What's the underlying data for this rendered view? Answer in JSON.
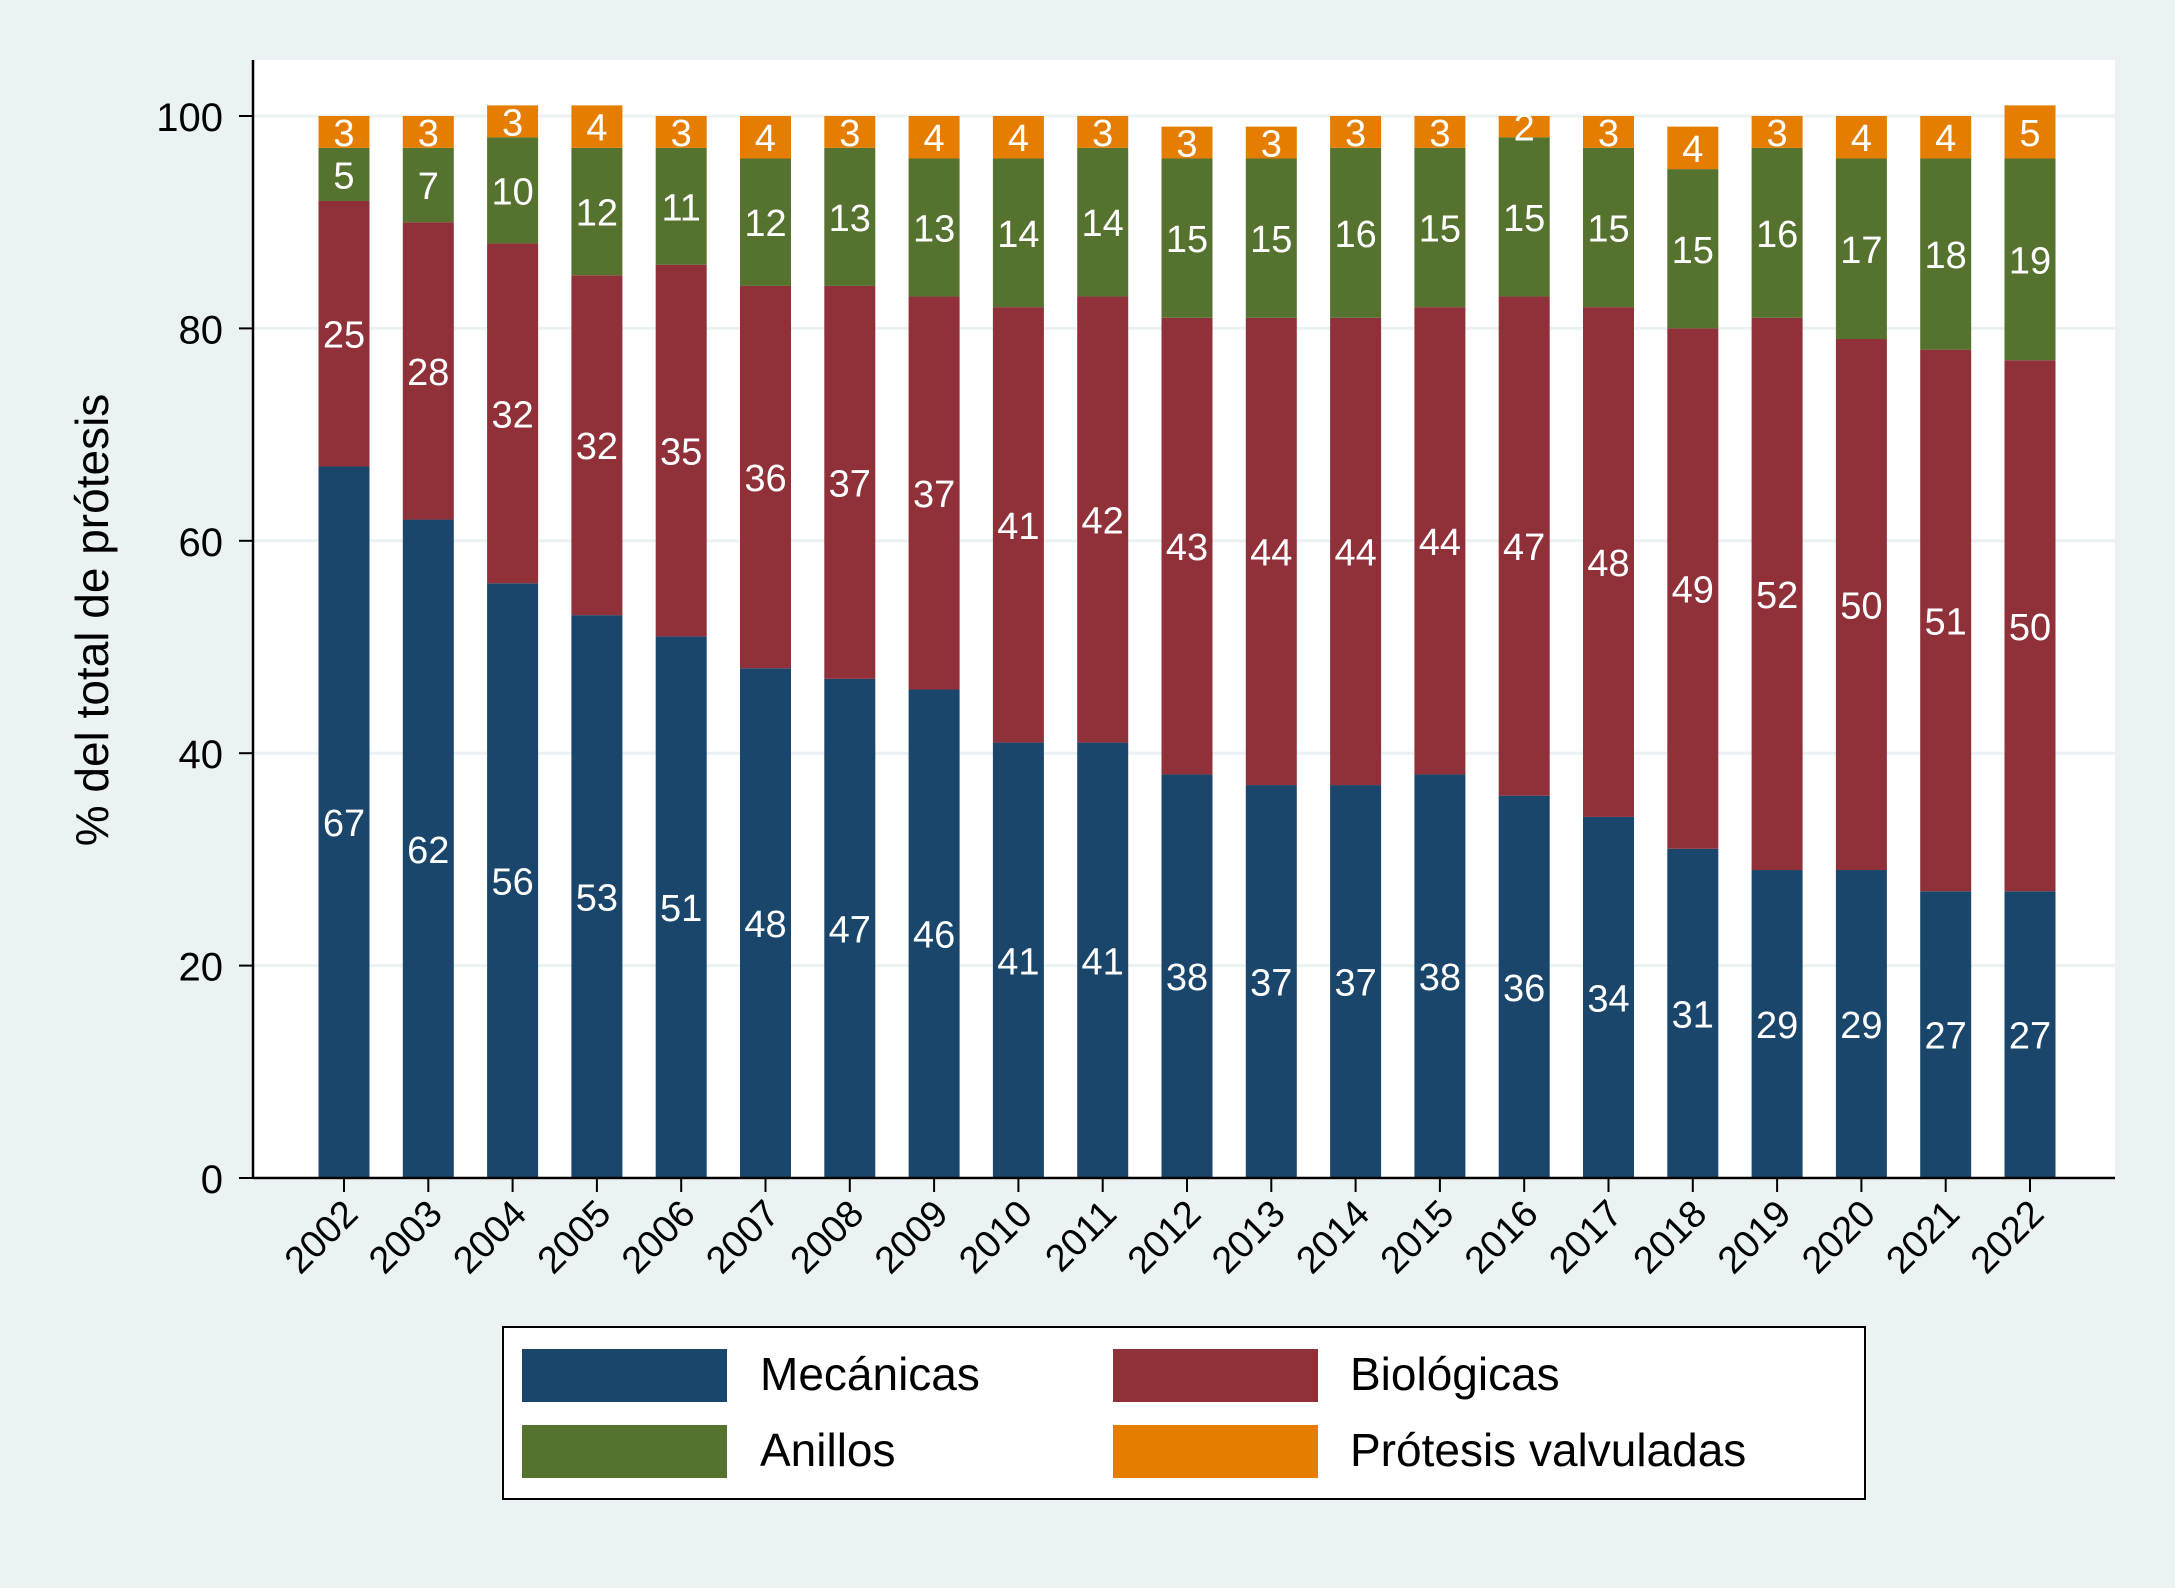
{
  "chart_data": {
    "type": "bar",
    "stacked": true,
    "title": "",
    "xlabel": "",
    "ylabel": "% del total de prótesis",
    "ylim": [
      0,
      100
    ],
    "yticks": [
      0,
      20,
      40,
      60,
      80,
      100
    ],
    "grid": true,
    "legend_position": "bottom",
    "categories": [
      "2002",
      "2003",
      "2004",
      "2005",
      "2006",
      "2007",
      "2008",
      "2009",
      "2010",
      "2011",
      "2012",
      "2013",
      "2014",
      "2015",
      "2016",
      "2017",
      "2018",
      "2019",
      "2020",
      "2021",
      "2022"
    ],
    "series": [
      {
        "name": "Mecánicas",
        "color": "#1a466b",
        "values": [
          67,
          62,
          56,
          53,
          51,
          48,
          47,
          46,
          41,
          41,
          38,
          37,
          37,
          38,
          36,
          34,
          31,
          29,
          29,
          27,
          27
        ],
        "labels": [
          "67",
          "62",
          "56",
          "53",
          "51",
          "48",
          "47",
          "46",
          "41",
          "41",
          "38",
          "37",
          "37",
          "38",
          "36",
          "34",
          "31",
          "29",
          "29",
          "27",
          "27"
        ]
      },
      {
        "name": "Biológicas",
        "color": "#903039",
        "values": [
          25,
          28,
          32,
          32,
          35,
          36,
          37,
          37,
          41,
          42,
          43,
          44,
          44,
          44,
          47,
          48,
          49,
          52,
          50,
          51,
          50
        ],
        "labels": [
          "25",
          "28",
          "32",
          "32",
          "35",
          "36",
          "37",
          "37",
          "41",
          "42",
          "43",
          "44",
          "44",
          "44",
          "47",
          "48",
          "49",
          "52",
          "50",
          "51",
          "50"
        ]
      },
      {
        "name": "Anillos",
        "color": "#56722f",
        "values": [
          5,
          7,
          10,
          12,
          11,
          12,
          13,
          13,
          14,
          14,
          15,
          15,
          16,
          15,
          15,
          15,
          15,
          16,
          17,
          18,
          19
        ],
        "labels": [
          "5",
          "7",
          "10",
          "12",
          "11",
          "12",
          "13",
          "13",
          "14",
          "14",
          "15",
          "15",
          "16",
          "15",
          "15",
          "15",
          "15",
          "16",
          "17",
          "18",
          "19"
        ]
      },
      {
        "name": "Prótesis valvuladas",
        "color": "#e57e00",
        "values": [
          3,
          3,
          3,
          4,
          3,
          4,
          3,
          4,
          4,
          3,
          3,
          3,
          3,
          3,
          2,
          3,
          4,
          3,
          4,
          4,
          5
        ],
        "labels": [
          "3",
          "3",
          "3",
          "4",
          "3",
          "4",
          "3",
          "4",
          "4",
          "3",
          "3",
          "3",
          "3",
          "3",
          "2",
          "3",
          "4",
          "3",
          "4",
          "4",
          "5"
        ]
      }
    ]
  }
}
